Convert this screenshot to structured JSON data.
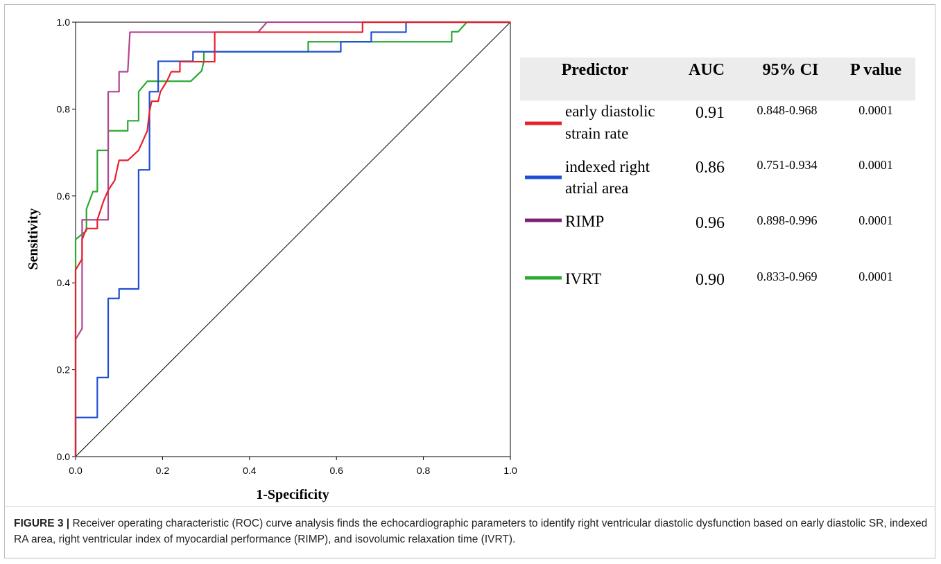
{
  "colors": {
    "early_diastolic_strain_rate": "#e8202a",
    "indexed_right_atrial_area": "#1f4fd1",
    "RIMP": "#7b1f6e",
    "RIMP_curve": "#b2458f",
    "IVRT": "#2aa832",
    "header_bg": "#ececec"
  },
  "chart_data": {
    "type": "line",
    "xlabel": "1-Specificity",
    "ylabel": "Sensitivity",
    "xlim": [
      0,
      1
    ],
    "ylim": [
      0,
      1
    ],
    "x_ticks": [
      "0.0",
      "0.2",
      "0.4",
      "0.6",
      "0.8",
      "1.0"
    ],
    "y_ticks": [
      "0.0",
      "0.2",
      "0.4",
      "0.6",
      "0.8",
      "1.0"
    ],
    "grid": false,
    "reference_line": [
      [
        0,
        0
      ],
      [
        1,
        1
      ]
    ],
    "series": [
      {
        "key": "IVRT",
        "points": [
          [
            0,
            0
          ],
          [
            0,
            0.44
          ],
          [
            0,
            0.5
          ],
          [
            0.025,
            0.52
          ],
          [
            0.025,
            0.57
          ],
          [
            0.04,
            0.61
          ],
          [
            0.05,
            0.61
          ],
          [
            0.05,
            0.705
          ],
          [
            0.075,
            0.705
          ],
          [
            0.075,
            0.75
          ],
          [
            0.12,
            0.75
          ],
          [
            0.12,
            0.773
          ],
          [
            0.145,
            0.773
          ],
          [
            0.145,
            0.84
          ],
          [
            0.165,
            0.864
          ],
          [
            0.22,
            0.864
          ],
          [
            0.22,
            0.864
          ],
          [
            0.265,
            0.864
          ],
          [
            0.29,
            0.888
          ],
          [
            0.295,
            0.91
          ],
          [
            0.295,
            0.932
          ],
          [
            0.535,
            0.932
          ],
          [
            0.535,
            0.955
          ],
          [
            0.865,
            0.955
          ],
          [
            0.865,
            0.978
          ],
          [
            0.88,
            0.978
          ],
          [
            0.9,
            1.0
          ],
          [
            1.0,
            1.0
          ]
        ]
      },
      {
        "key": "RIMP",
        "points": [
          [
            0,
            0
          ],
          [
            0,
            0.27
          ],
          [
            0.015,
            0.295
          ],
          [
            0.015,
            0.545
          ],
          [
            0.075,
            0.545
          ],
          [
            0.075,
            0.84
          ],
          [
            0.1,
            0.84
          ],
          [
            0.1,
            0.886
          ],
          [
            0.12,
            0.886
          ],
          [
            0.125,
            0.977
          ],
          [
            0.42,
            0.977
          ],
          [
            0.44,
            1.0
          ],
          [
            1.0,
            1.0
          ]
        ]
      },
      {
        "key": "indexed_right_atrial_area",
        "points": [
          [
            0,
            0
          ],
          [
            0,
            0.09
          ],
          [
            0.05,
            0.09
          ],
          [
            0.05,
            0.182
          ],
          [
            0.075,
            0.182
          ],
          [
            0.075,
            0.364
          ],
          [
            0.1,
            0.364
          ],
          [
            0.1,
            0.386
          ],
          [
            0.145,
            0.386
          ],
          [
            0.145,
            0.66
          ],
          [
            0.17,
            0.66
          ],
          [
            0.17,
            0.84
          ],
          [
            0.19,
            0.84
          ],
          [
            0.19,
            0.91
          ],
          [
            0.27,
            0.91
          ],
          [
            0.27,
            0.932
          ],
          [
            0.61,
            0.932
          ],
          [
            0.61,
            0.955
          ],
          [
            0.68,
            0.955
          ],
          [
            0.68,
            0.977
          ],
          [
            0.76,
            0.977
          ],
          [
            0.76,
            1.0
          ],
          [
            1.0,
            1.0
          ]
        ]
      },
      {
        "key": "early_diastolic_strain_rate",
        "points": [
          [
            0,
            0
          ],
          [
            0,
            0.43
          ],
          [
            0.015,
            0.455
          ],
          [
            0.015,
            0.5
          ],
          [
            0.025,
            0.525
          ],
          [
            0.05,
            0.525
          ],
          [
            0.05,
            0.545
          ],
          [
            0.065,
            0.59
          ],
          [
            0.075,
            0.613
          ],
          [
            0.09,
            0.636
          ],
          [
            0.1,
            0.682
          ],
          [
            0.12,
            0.682
          ],
          [
            0.145,
            0.705
          ],
          [
            0.165,
            0.75
          ],
          [
            0.17,
            0.795
          ],
          [
            0.175,
            0.818
          ],
          [
            0.19,
            0.818
          ],
          [
            0.195,
            0.84
          ],
          [
            0.21,
            0.864
          ],
          [
            0.22,
            0.886
          ],
          [
            0.24,
            0.886
          ],
          [
            0.24,
            0.909
          ],
          [
            0.32,
            0.909
          ],
          [
            0.32,
            0.977
          ],
          [
            0.66,
            0.977
          ],
          [
            0.66,
            1.0
          ],
          [
            1.0,
            1.0
          ]
        ]
      }
    ]
  },
  "legend_table": {
    "headers": {
      "predictor": "Predictor",
      "auc": "AUC",
      "ci": "95% CI",
      "p": "P value"
    },
    "rows": [
      {
        "key": "early_diastolic_strain_rate",
        "label_line1": "early diastolic",
        "label_line2": "strain rate",
        "auc": "0.91",
        "ci": "0.848-0.968",
        "p": "0.0001"
      },
      {
        "key": "indexed_right_atrial_area",
        "label_line1": "indexed right",
        "label_line2": "atrial area",
        "auc": "0.86",
        "ci": "0.751-0.934",
        "p": "0.0001"
      },
      {
        "key": "RIMP",
        "label_line1": "RIMP",
        "label_line2": "",
        "auc": "0.96",
        "ci": "0.898-0.996",
        "p": "0.0001"
      },
      {
        "key": "IVRT",
        "label_line1": "IVRT",
        "label_line2": "",
        "auc": "0.90",
        "ci": "0.833-0.969",
        "p": "0.0001"
      }
    ]
  },
  "caption": {
    "figure_label": "FIGURE 3 |",
    "text": " Receiver operating characteristic (ROC) curve analysis finds the echocardiographic parameters to identify right ventricular diastolic dysfunction based on early diastolic SR, indexed RA area, right ventricular index of myocardial performance (RIMP), and isovolumic relaxation time (IVRT)."
  }
}
